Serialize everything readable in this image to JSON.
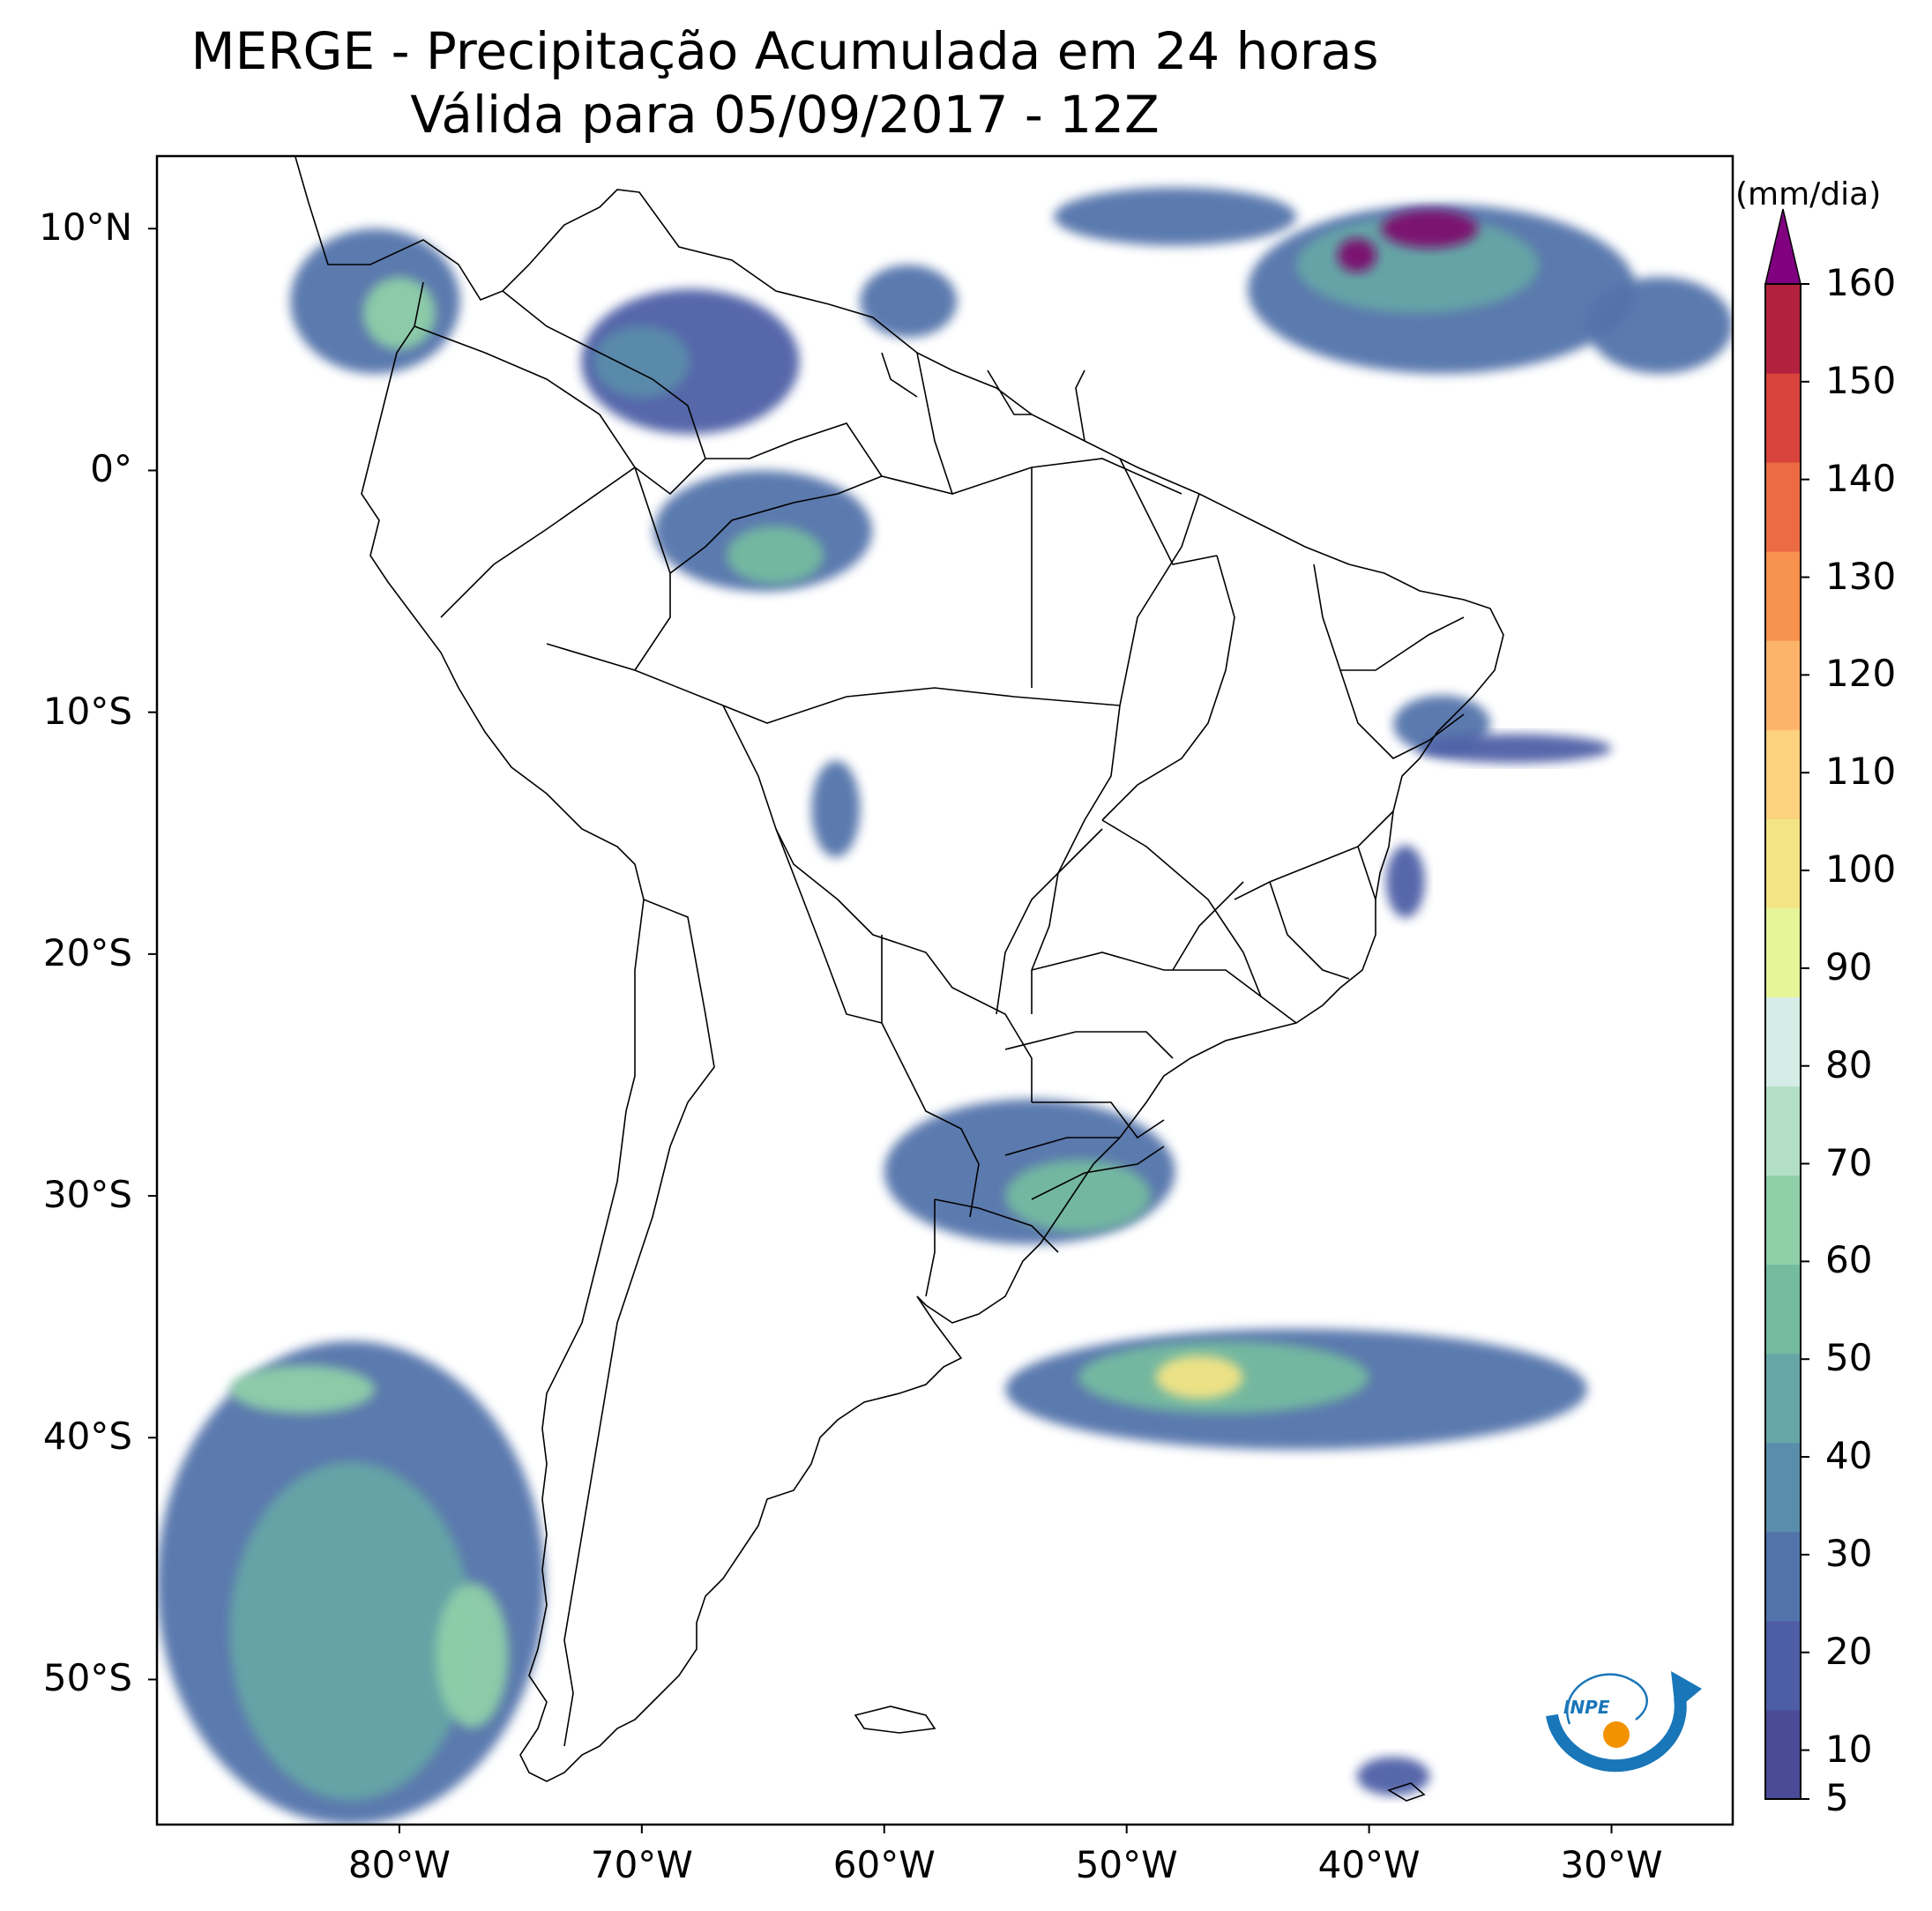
{
  "title": {
    "line1": "MERGE - Precipitação Acumulada em 24 horas",
    "line2": "Válida para 05/09/2017 - 12Z"
  },
  "map": {
    "lon_range": [
      -90,
      -25
    ],
    "lat_range": [
      -56,
      13
    ],
    "lat_ticks": [
      {
        "value": 10,
        "label": "10°N"
      },
      {
        "value": 0,
        "label": "0°"
      },
      {
        "value": -10,
        "label": "10°S"
      },
      {
        "value": -20,
        "label": "20°S"
      },
      {
        "value": -30,
        "label": "30°S"
      },
      {
        "value": -40,
        "label": "40°S"
      },
      {
        "value": -50,
        "label": "50°S"
      }
    ],
    "lon_ticks": [
      {
        "value": -80,
        "label": "80°W"
      },
      {
        "value": -70,
        "label": "70°W"
      },
      {
        "value": -60,
        "label": "60°W"
      },
      {
        "value": -50,
        "label": "50°W"
      },
      {
        "value": -40,
        "label": "40°W"
      },
      {
        "value": -30,
        "label": "30°W"
      }
    ]
  },
  "colorbar": {
    "unit": "(mm/dia)",
    "levels": [
      5,
      10,
      20,
      30,
      40,
      50,
      60,
      70,
      80,
      90,
      100,
      110,
      120,
      130,
      140,
      150,
      160
    ],
    "labels": [
      "5",
      "10",
      "20",
      "30",
      "40",
      "50",
      "60",
      "70",
      "80",
      "90",
      "100",
      "110",
      "120",
      "130",
      "140",
      "150",
      "160"
    ],
    "colors": [
      "#4a4a96",
      "#4d5ea6",
      "#5273aa",
      "#5a8cab",
      "#66a6a6",
      "#74bba0",
      "#8fcfa8",
      "#b3dfc6",
      "#d6ece6",
      "#e6f598",
      "#f3e485",
      "#fdd27e",
      "#fdb46a",
      "#f8924f",
      "#ec6b45",
      "#d8433c",
      "#b2223f",
      "#7d0a6e"
    ],
    "extend_color": "#800080"
  },
  "logo": {
    "text": "INPE",
    "colors": {
      "blue": "#1976b8",
      "orange": "#f39200"
    }
  },
  "precip_areas": [
    {
      "lon": -81,
      "lat": 7,
      "rx": 3.5,
      "ry": 3,
      "level": 2
    },
    {
      "lon": -80,
      "lat": 6.5,
      "rx": 1.5,
      "ry": 1.5,
      "level": 6
    },
    {
      "lon": -68,
      "lat": 4.5,
      "rx": 4.5,
      "ry": 3,
      "level": 1
    },
    {
      "lon": -70,
      "lat": 4.5,
      "rx": 2,
      "ry": 1.5,
      "level": 3
    },
    {
      "lon": -65,
      "lat": -2.5,
      "rx": 4.5,
      "ry": 2.5,
      "level": 2
    },
    {
      "lon": -64.5,
      "lat": -3.5,
      "rx": 2,
      "ry": 1.2,
      "level": 5
    },
    {
      "lon": -59,
      "lat": 7,
      "rx": 2,
      "ry": 1.5,
      "level": 2
    },
    {
      "lon": -37,
      "lat": 7.5,
      "rx": 8,
      "ry": 3.5,
      "level": 2
    },
    {
      "lon": -38,
      "lat": 8.5,
      "rx": 5,
      "ry": 2,
      "level": 4
    },
    {
      "lon": -37.5,
      "lat": 10,
      "rx": 2,
      "ry": 0.8,
      "level": 17
    },
    {
      "lon": -40.5,
      "lat": 8.9,
      "rx": 0.8,
      "ry": 0.7,
      "level": 17
    },
    {
      "lon": -48,
      "lat": 10.5,
      "rx": 5,
      "ry": 1.2,
      "level": 2
    },
    {
      "lon": -28,
      "lat": 6,
      "rx": 3,
      "ry": 2,
      "level": 2
    },
    {
      "lon": -37,
      "lat": -10.5,
      "rx": 2,
      "ry": 1.2,
      "level": 2
    },
    {
      "lon": -34,
      "lat": -11.5,
      "rx": 4,
      "ry": 0.6,
      "level": 1
    },
    {
      "lon": -62,
      "lat": -14,
      "rx": 1,
      "ry": 2,
      "level": 2
    },
    {
      "lon": -38.5,
      "lat": -17,
      "rx": 0.8,
      "ry": 1.5,
      "level": 1
    },
    {
      "lon": -54,
      "lat": -29,
      "rx": 6,
      "ry": 3,
      "level": 2
    },
    {
      "lon": -52,
      "lat": -30,
      "rx": 3,
      "ry": 1.5,
      "level": 5
    },
    {
      "lon": -43,
      "lat": -38,
      "rx": 12,
      "ry": 2.5,
      "level": 2
    },
    {
      "lon": -46,
      "lat": -37.5,
      "rx": 6,
      "ry": 1.5,
      "level": 5
    },
    {
      "lon": -47,
      "lat": -37.5,
      "rx": 1.8,
      "ry": 0.9,
      "level": 10
    },
    {
      "lon": -82,
      "lat": -46,
      "rx": 8,
      "ry": 10,
      "level": 2
    },
    {
      "lon": -82,
      "lat": -48,
      "rx": 5,
      "ry": 7,
      "level": 4
    },
    {
      "lon": -84,
      "lat": -38,
      "rx": 3,
      "ry": 1,
      "level": 6
    },
    {
      "lon": -77,
      "lat": -49,
      "rx": 1.5,
      "ry": 3,
      "level": 6
    },
    {
      "lon": -39,
      "lat": -54,
      "rx": 1.5,
      "ry": 0.8,
      "level": 1
    }
  ]
}
